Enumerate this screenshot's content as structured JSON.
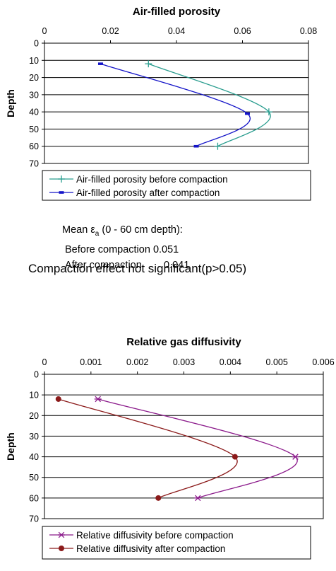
{
  "chart_data": [
    {
      "type": "line",
      "title": "Air-filled porosity",
      "xlabel": "",
      "ylabel": "Depth",
      "xlim": [
        0,
        0.08
      ],
      "ylim": [
        0,
        70
      ],
      "x_ticks": [
        "0",
        "0.02",
        "0.04",
        "0.06",
        "0.08"
      ],
      "y_ticks": [
        "0",
        "10",
        "20",
        "30",
        "40",
        "50",
        "60",
        "70"
      ],
      "y_inverted": true,
      "x_axis_position": "top",
      "grid": "horizontal",
      "legend_position": "bottom",
      "series": [
        {
          "name": "Air-filled porosity before compaction",
          "color": "#2a9d8f",
          "marker": "plus",
          "points": [
            {
              "x": 0.0315,
              "y": 12
            },
            {
              "x": 0.068,
              "y": 40
            },
            {
              "x": 0.0525,
              "y": 60
            }
          ]
        },
        {
          "name": "Air-filled porosity after compaction",
          "color": "#1414c8",
          "marker": "dash",
          "points": [
            {
              "x": 0.017,
              "y": 12
            },
            {
              "x": 0.0615,
              "y": 41
            },
            {
              "x": 0.046,
              "y": 60
            }
          ]
        }
      ]
    },
    {
      "type": "line",
      "title": "Relative gas diffusivity",
      "xlabel": "",
      "ylabel": "Depth",
      "xlim": [
        0,
        0.006
      ],
      "ylim": [
        0,
        70
      ],
      "x_ticks": [
        "0",
        "0.001",
        "0.002",
        "0.003",
        "0.004",
        "0.005",
        "0.006"
      ],
      "y_ticks": [
        "0",
        "10",
        "20",
        "30",
        "40",
        "50",
        "60",
        "70"
      ],
      "y_inverted": true,
      "x_axis_position": "top",
      "grid": "horizontal",
      "legend_position": "bottom",
      "series": [
        {
          "name": "Relative diffusivity before compaction",
          "color": "#8b1a8b",
          "marker": "star",
          "points": [
            {
              "x": 0.00115,
              "y": 12
            },
            {
              "x": 0.0054,
              "y": 40
            },
            {
              "x": 0.0033,
              "y": 60
            }
          ]
        },
        {
          "name": "Relative diffusivity after compaction",
          "color": "#8b1a1a",
          "marker": "circle",
          "points": [
            {
              "x": 0.0003,
              "y": 12
            },
            {
              "x": 0.0041,
              "y": 40
            },
            {
              "x": 0.00245,
              "y": 60
            }
          ]
        }
      ]
    }
  ],
  "stats": {
    "heading_prefix": "Mean ",
    "heading_symbol": "ε",
    "heading_subscript": "a",
    "heading_suffix": " (0 - 60 cm depth):",
    "before_label": "Before compaction",
    "before_value": "0.051",
    "after_label": "After compaction",
    "after_value": "0.041"
  },
  "significance_note": "Compaction effect not significant(p>0.05)"
}
